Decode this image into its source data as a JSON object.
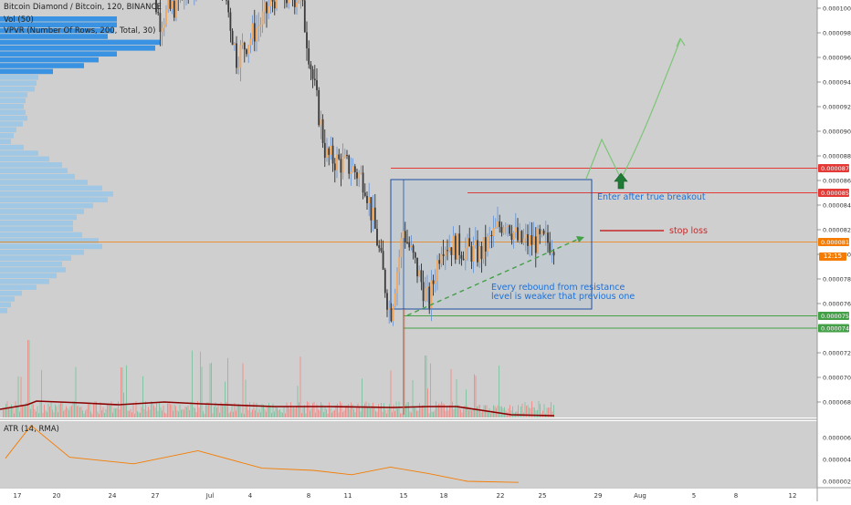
{
  "header": {
    "title": "Bitcoin Diamond / Bitcoin, 120, BINANCE",
    "vol_label": "Vol (50)",
    "vpvr_label": "VPVR (Number Of Rows, 200, Total, 30)"
  },
  "atr_label": "ATR (14, RMA)",
  "price_axis": {
    "ticks": [
      "0.000104",
      "0.000100",
      "0.000098",
      "0.000096",
      "0.000094",
      "0.000092",
      "0.000090",
      "0.000088",
      "0.000086",
      "0.000084",
      "0.000082",
      "0.000080",
      "0.000078",
      "0.000076",
      "0.000072",
      "0.000070",
      "0.000068",
      "0.000066",
      "0.000064"
    ],
    "atr_ticks": [
      "0.000006",
      "0.000004",
      "0.000002"
    ],
    "markers": [
      {
        "label": "0.000103",
        "color": "#e53935",
        "price": 0.000103
      },
      {
        "label": "0.000102",
        "color": "#e53935",
        "price": 0.000102
      },
      {
        "label": "0.000087",
        "color": "#e53935",
        "price": 8.7e-05
      },
      {
        "label": "0.000085",
        "color": "#e53935",
        "price": 8.5e-05
      },
      {
        "label": "0.000081",
        "color": "#f57c00",
        "price": 8.1e-05
      },
      {
        "label": "0.000075",
        "color": "#43a047",
        "price": 7.5e-05
      },
      {
        "label": "0.000074",
        "color": "#43a047",
        "price": 7.4e-05
      }
    ],
    "countdown": "12:15"
  },
  "time_axis": {
    "labels": [
      "17",
      "20",
      "24",
      "27",
      "Jul",
      "4",
      "8",
      "11",
      "15",
      "18",
      "22",
      "25",
      "29",
      "Aug",
      "5",
      "8",
      "12"
    ]
  },
  "annotations": {
    "breakout_text": "Enter after true breakout",
    "stop_loss_text": "stop loss",
    "rebound_line1": "Every rebound from resistance",
    "rebound_line2": "level is weaker that previous one"
  },
  "colors": {
    "up": "#26a69a",
    "down": "#ef5350",
    "resistance": "#e53935",
    "support": "#43a047",
    "current": "#f57c00",
    "box": "#1e4fa0",
    "vpvr": "#2196f3",
    "annotation_text": "#1e6fd6",
    "atr": "#f57c00"
  },
  "chart_data": {
    "type": "candlestick",
    "symbol": "Bitcoin Diamond / Bitcoin",
    "interval": "120",
    "exchange": "BINANCE",
    "ylim": [
      6.3e-05,
      0.000105
    ],
    "key_levels": {
      "resistance": [
        0.000103,
        0.000102,
        8.7e-05,
        8.5e-05
      ],
      "current": 8.1e-05,
      "support": [
        7.5e-05,
        7.4e-05
      ],
      "stop_loss": 8.17e-05
    },
    "price_path": [
      {
        "date": "Jun 16",
        "price": 0.000106
      },
      {
        "date": "Jun 24",
        "price": 0.000107
      },
      {
        "date": "Jun 27",
        "price": 0.000104
      },
      {
        "date": "Jun 28",
        "price": 9.9e-05
      },
      {
        "date": "Jun 30",
        "price": 0.000101
      },
      {
        "date": "Jul 2",
        "price": 0.000104
      },
      {
        "date": "Jul 3",
        "price": 0.000102
      },
      {
        "date": "Jul 4",
        "price": 9.6e-05
      },
      {
        "date": "Jul 6",
        "price": 9.9e-05
      },
      {
        "date": "Jul 7",
        "price": 0.000101
      },
      {
        "date": "Jul 9",
        "price": 0.000101
      },
      {
        "date": "Jul 10",
        "price": 9.4e-05
      },
      {
        "date": "Jul 11",
        "price": 8.8e-05
      },
      {
        "date": "Jul 13",
        "price": 8.7e-05
      },
      {
        "date": "Jul 14",
        "price": 8.6e-05
      },
      {
        "date": "Jul 15",
        "price": 8.1e-05
      },
      {
        "date": "Jul 16",
        "price": 7.5e-05
      },
      {
        "date": "Jul 17",
        "price": 8.2e-05
      },
      {
        "date": "Jul 19",
        "price": 7.6e-05
      },
      {
        "date": "Jul 20",
        "price": 8.1e-05
      },
      {
        "date": "Jul 23",
        "price": 8e-05
      },
      {
        "date": "Jul 25",
        "price": 8.3e-05
      },
      {
        "date": "Jul 26",
        "price": 8.1e-05
      }
    ],
    "atr": [
      {
        "date": "Jun 16",
        "value": 4.1e-06
      },
      {
        "date": "Jun 18",
        "value": 7.1e-06
      },
      {
        "date": "Jun 21",
        "value": 4.2e-06
      },
      {
        "date": "Jun 26",
        "value": 3.6e-06
      },
      {
        "date": "Jul 1",
        "value": 4.8e-06
      },
      {
        "date": "Jul 6",
        "value": 3.2e-06
      },
      {
        "date": "Jul 10",
        "value": 3e-06
      },
      {
        "date": "Jul 13",
        "value": 2.6e-06
      },
      {
        "date": "Jul 16",
        "value": 3.3e-06
      },
      {
        "date": "Jul 19",
        "value": 2.7e-06
      },
      {
        "date": "Jul 22",
        "value": 2e-06
      },
      {
        "date": "Jul 26",
        "value": 1.9e-06
      }
    ]
  }
}
